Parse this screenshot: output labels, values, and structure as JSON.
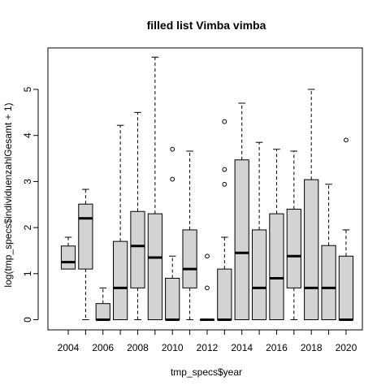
{
  "chart_data": {
    "type": "boxplot",
    "title": "filled list Vimba vimba",
    "xlabel": "tmp_specs$year",
    "ylabel": "log(tmp_specs$individuenzahlGesamt + 1)",
    "ylim": [
      -0.25,
      5.9
    ],
    "yticks": [
      0,
      1,
      2,
      3,
      4,
      5
    ],
    "x_tick_labels": [
      "2004",
      "2006",
      "2008",
      "2010",
      "2012",
      "2014",
      "2016",
      "2018",
      "2020"
    ],
    "box_fill": "#d3d3d3",
    "grid": false,
    "boxes": [
      {
        "year": "2004",
        "wlo": 1.1,
        "q1": 1.1,
        "median": 1.25,
        "q3": 1.6,
        "whi": 1.79,
        "outliers": []
      },
      {
        "year": "2005",
        "wlo": 0,
        "q1": 1.1,
        "median": 2.2,
        "q3": 2.51,
        "whi": 2.83,
        "outliers": []
      },
      {
        "year": "2006",
        "wlo": 0,
        "q1": 0,
        "median": 0,
        "q3": 0.35,
        "whi": 0.69,
        "outliers": []
      },
      {
        "year": "2007",
        "wlo": 0,
        "q1": 0,
        "median": 0.69,
        "q3": 1.7,
        "whi": 4.22,
        "outliers": []
      },
      {
        "year": "2008",
        "wlo": 0,
        "q1": 0.69,
        "median": 1.6,
        "q3": 2.35,
        "whi": 4.5,
        "outliers": []
      },
      {
        "year": "2009",
        "wlo": 0,
        "q1": 0,
        "median": 1.35,
        "q3": 2.3,
        "whi": 5.7,
        "outliers": []
      },
      {
        "year": "2010",
        "wlo": 0,
        "q1": 0,
        "median": 0,
        "q3": 0.9,
        "whi": 1.38,
        "outliers": [
          3.05,
          3.7
        ]
      },
      {
        "year": "2011",
        "wlo": 0,
        "q1": 0.69,
        "median": 1.1,
        "q3": 1.95,
        "whi": 3.66,
        "outliers": []
      },
      {
        "year": "2012",
        "wlo": 0,
        "q1": 0,
        "median": 0,
        "q3": 0,
        "whi": 0,
        "outliers": [
          0.69,
          1.38
        ]
      },
      {
        "year": "2013",
        "wlo": 0,
        "q1": 0,
        "median": 0,
        "q3": 1.1,
        "whi": 1.79,
        "outliers": [
          2.94,
          3.26,
          4.3
        ]
      },
      {
        "year": "2014",
        "wlo": 0,
        "q1": 0,
        "median": 1.45,
        "q3": 3.47,
        "whi": 4.7,
        "outliers": []
      },
      {
        "year": "2015",
        "wlo": 0,
        "q1": 0,
        "median": 0.69,
        "q3": 1.95,
        "whi": 3.85,
        "outliers": []
      },
      {
        "year": "2016",
        "wlo": 0,
        "q1": 0,
        "median": 0.9,
        "q3": 2.3,
        "whi": 3.7,
        "outliers": []
      },
      {
        "year": "2017",
        "wlo": 0,
        "q1": 0.69,
        "median": 1.38,
        "q3": 2.4,
        "whi": 3.66,
        "outliers": []
      },
      {
        "year": "2018",
        "wlo": 0,
        "q1": 0,
        "median": 0.69,
        "q3": 3.04,
        "whi": 5.0,
        "outliers": []
      },
      {
        "year": "2019",
        "wlo": 0,
        "q1": 0,
        "median": 0.69,
        "q3": 1.61,
        "whi": 2.94,
        "outliers": []
      },
      {
        "year": "2020",
        "wlo": 0,
        "q1": 0,
        "median": 0,
        "q3": 1.38,
        "whi": 1.95,
        "outliers": [
          3.9
        ]
      }
    ]
  }
}
